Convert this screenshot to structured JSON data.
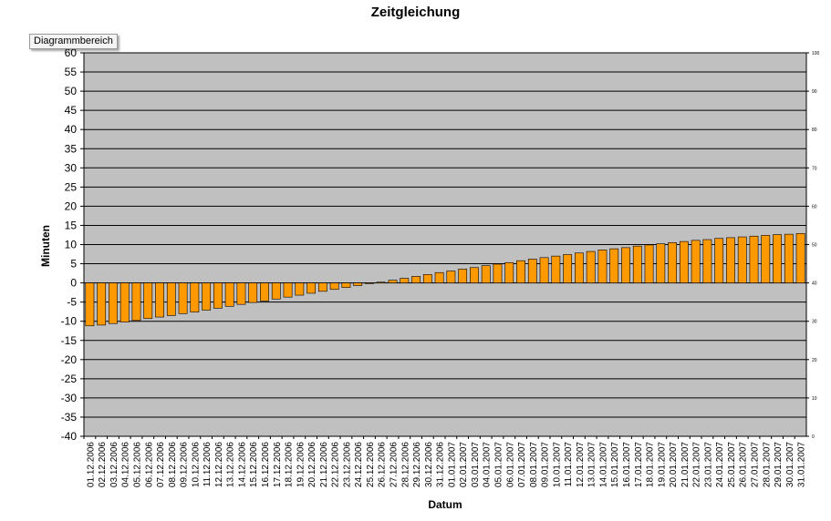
{
  "tooltip": "Diagrammbereich",
  "chart_data": {
    "type": "bar",
    "title": "Zeitgleichung",
    "xlabel": "Datum",
    "ylabel": "Minuten",
    "ylim": [
      -40,
      60
    ],
    "yticks": [
      -40,
      -35,
      -30,
      -25,
      -20,
      -15,
      -10,
      -5,
      0,
      5,
      10,
      15,
      20,
      25,
      30,
      35,
      40,
      45,
      50,
      55,
      60
    ],
    "secondary_ylim": [
      0,
      100
    ],
    "secondary_yticks": [
      0,
      10,
      20,
      30,
      40,
      50,
      60,
      70,
      80,
      90,
      100
    ],
    "grid": true,
    "legend": "none",
    "colors": {
      "bar": "#ff9900",
      "plot_bg": "#c0c0c0",
      "bar_edge": "#000000",
      "grid": "#000000"
    },
    "categories": [
      "01.12.2006",
      "02.12.2006",
      "03.12.2006",
      "04.12.2006",
      "05.12.2006",
      "06.12.2006",
      "07.12.2006",
      "08.12.2006",
      "09.12.2006",
      "10.12.2006",
      "11.12.2006",
      "12.12.2006",
      "13.12.2006",
      "14.12.2006",
      "15.12.2006",
      "16.12.2006",
      "17.12.2006",
      "18.12.2006",
      "19.12.2006",
      "20.12.2006",
      "21.12.2006",
      "22.12.2006",
      "23.12.2006",
      "24.12.2006",
      "25.12.2006",
      "26.12.2006",
      "27.12.2006",
      "28.12.2006",
      "29.12.2006",
      "30.12.2006",
      "31.12.2006",
      "01.01.2007",
      "02.01.2007",
      "03.01.2007",
      "04.01.2007",
      "05.01.2007",
      "06.01.2007",
      "07.01.2007",
      "08.01.2007",
      "09.01.2007",
      "10.01.2007",
      "11.01.2007",
      "12.01.2007",
      "13.01.2007",
      "14.01.2007",
      "15.01.2007",
      "16.01.2007",
      "17.01.2007",
      "18.01.2007",
      "19.01.2007",
      "20.01.2007",
      "21.01.2007",
      "22.01.2007",
      "23.01.2007",
      "24.01.2007",
      "25.01.2007",
      "26.01.2007",
      "27.01.2007",
      "28.01.2007",
      "29.01.2007",
      "30.01.2007",
      "31.01.2007"
    ],
    "values": [
      -11.2,
      -11.0,
      -10.6,
      -10.2,
      -9.8,
      -9.3,
      -8.9,
      -8.5,
      -8.0,
      -7.6,
      -7.1,
      -6.6,
      -6.1,
      -5.6,
      -5.1,
      -4.7,
      -4.2,
      -3.7,
      -3.2,
      -2.7,
      -2.2,
      -1.7,
      -1.2,
      -0.7,
      -0.2,
      0.2,
      0.7,
      1.2,
      1.7,
      2.2,
      2.7,
      3.1,
      3.6,
      4.0,
      4.5,
      4.9,
      5.3,
      5.8,
      6.2,
      6.6,
      7.0,
      7.4,
      7.8,
      8.2,
      8.6,
      8.9,
      9.2,
      9.6,
      9.9,
      10.2,
      10.5,
      10.8,
      11.1,
      11.3,
      11.6,
      11.8,
      12.0,
      12.2,
      12.4,
      12.6,
      12.7,
      12.9
    ]
  }
}
